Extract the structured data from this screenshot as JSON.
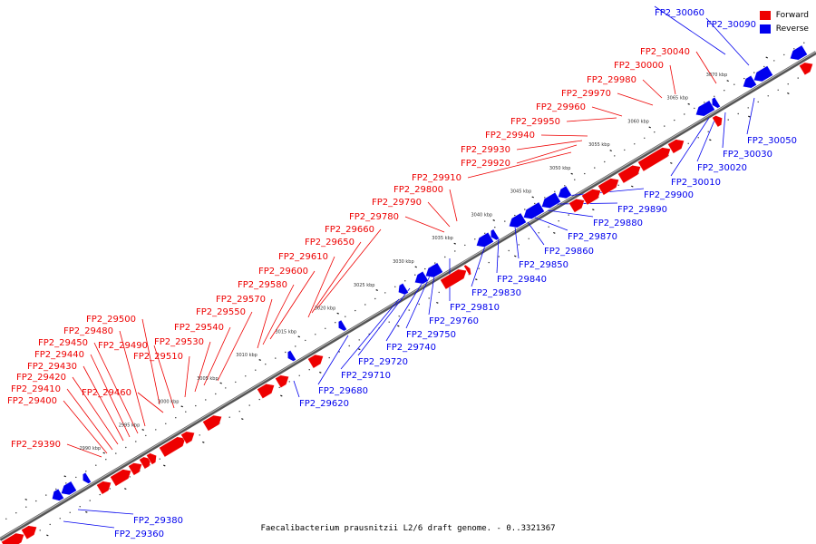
{
  "caption": "Faecalibacterium prausnitzii L2/6 draft genome. - 0..3321367",
  "legend": [
    {
      "label": "Forward",
      "color": "#ee0000"
    },
    {
      "label": "Reverse",
      "color": "#0000ee"
    }
  ],
  "colors": {
    "forward": "#ee0000",
    "reverse": "#0000ee",
    "axis": "#888888"
  },
  "scale_labels": [
    "2990 kbp",
    "2995 kbp",
    "3000 kbp",
    "3005 kbp",
    "3010 kbp",
    "3015 kbp",
    "3020 kbp",
    "3025 kbp",
    "3030 kbp",
    "3035 kbp",
    "3040 kbp",
    "3045 kbp",
    "3050 kbp",
    "3055 kbp",
    "3060 kbp",
    "3065 kbp",
    "3070 kbp"
  ],
  "forward_genes": [
    "FP2_29390",
    "FP2_29400",
    "FP2_29410",
    "FP2_29420",
    "FP2_29430",
    "FP2_29440",
    "FP2_29450",
    "FP2_29460",
    "FP2_29480",
    "FP2_29490",
    "FP2_29500",
    "FP2_29510",
    "FP2_29530",
    "FP2_29540",
    "FP2_29550",
    "FP2_29570",
    "FP2_29580",
    "FP2_29600",
    "FP2_29610",
    "FP2_29650",
    "FP2_29660",
    "FP2_29780",
    "FP2_29790",
    "FP2_29800",
    "FP2_29910",
    "FP2_29920",
    "FP2_29930",
    "FP2_29940",
    "FP2_29950",
    "FP2_29960",
    "FP2_29970",
    "FP2_29980",
    "FP2_30000",
    "FP2_30040"
  ],
  "reverse_genes": [
    "FP2_29360",
    "FP2_29380",
    "FP2_29620",
    "FP2_29680",
    "FP2_29710",
    "FP2_29720",
    "FP2_29740",
    "FP2_29750",
    "FP2_29760",
    "FP2_29810",
    "FP2_29830",
    "FP2_29840",
    "FP2_29850",
    "FP2_29860",
    "FP2_29870",
    "FP2_29880",
    "FP2_29890",
    "FP2_29900",
    "FP2_30010",
    "FP2_30020",
    "FP2_30030",
    "FP2_30050",
    "FP2_30060",
    "FP2_30090"
  ]
}
